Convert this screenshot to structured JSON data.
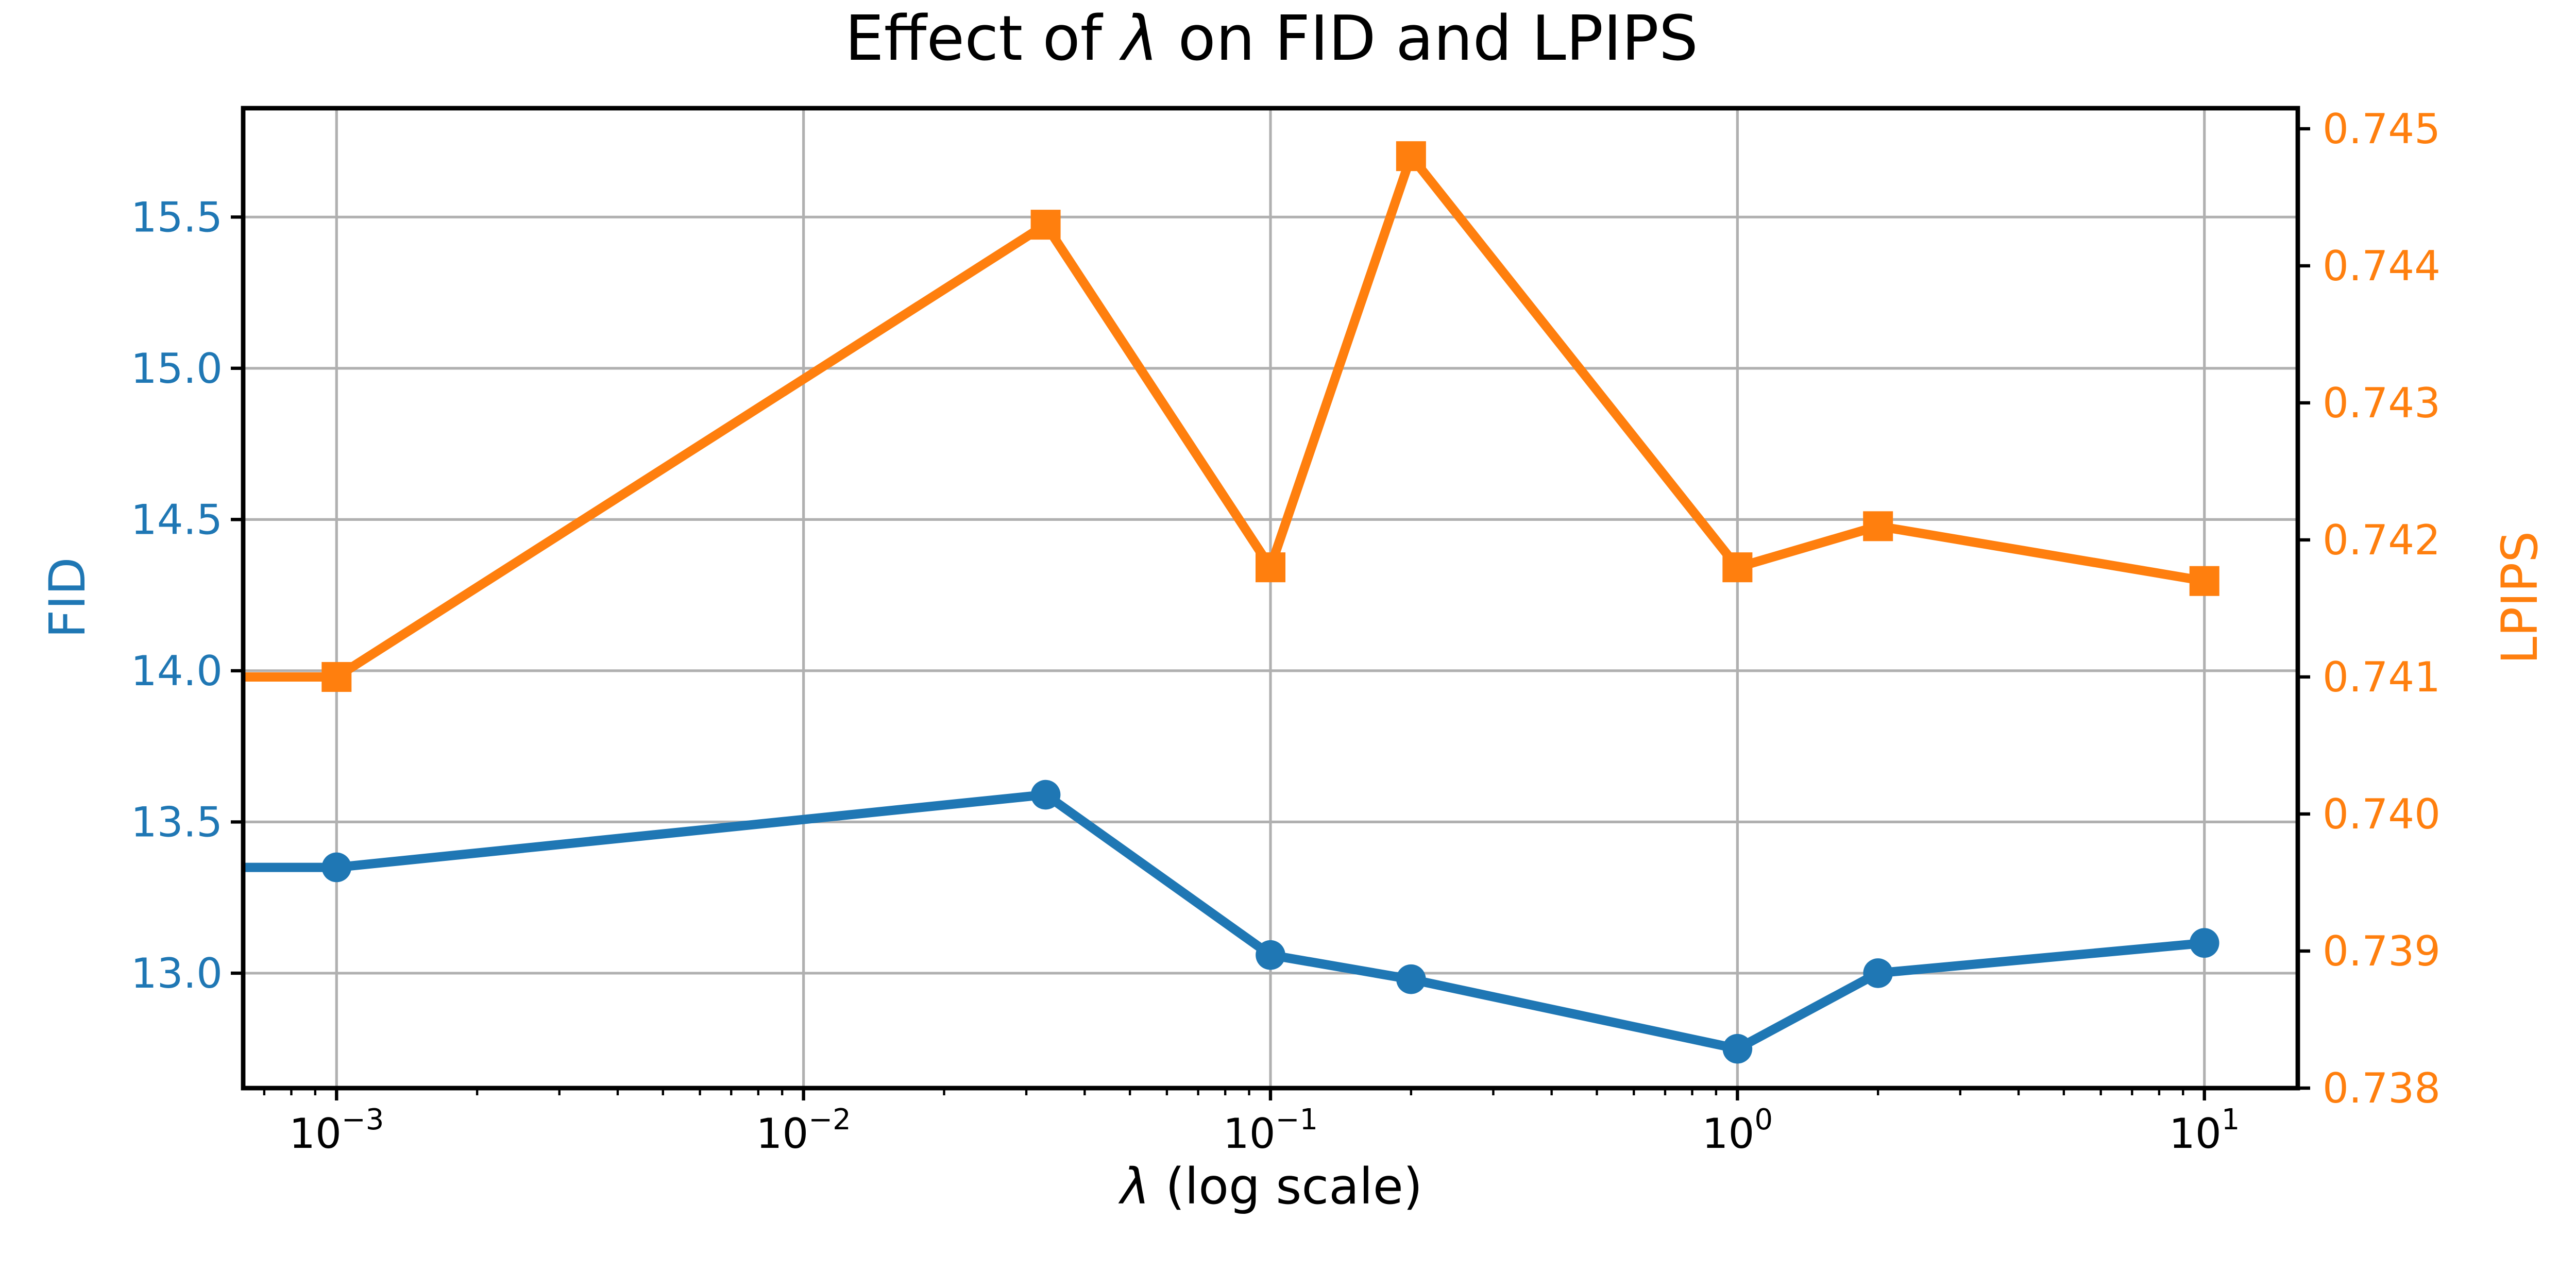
{
  "chart_data": {
    "type": "line",
    "title": "Effect of λ on FID and LPIPS",
    "title_parts": {
      "prefix": "Effect of ",
      "lambda": "λ",
      "suffix": " on FID and LPIPS"
    },
    "xlabel": "λ (log scale)",
    "xlabel_parts": {
      "lambda": "λ",
      "rest": " (log scale)"
    },
    "x_scale": "log",
    "xlim_log10": [
      -3.2,
      1.2
    ],
    "x_major_tick_exponents": [
      -3,
      -2,
      -1,
      0,
      1
    ],
    "x": [
      0.001,
      0.033,
      0.1,
      0.2,
      1,
      2,
      10
    ],
    "series": [
      {
        "name": "FID",
        "axis": "left",
        "color": "#1f77b4",
        "marker": "circle",
        "values": [
          13.35,
          13.59,
          13.06,
          12.98,
          12.75,
          13.0,
          13.1
        ]
      },
      {
        "name": "LPIPS",
        "axis": "right",
        "color": "#ff7f0e",
        "marker": "square",
        "values": [
          0.741,
          0.7443,
          0.7418,
          0.7448,
          0.7418,
          0.7421,
          0.7417
        ]
      }
    ],
    "left_axis": {
      "label": "FID",
      "color": "#1f77b4",
      "ticks": [
        13.0,
        13.5,
        14.0,
        14.5,
        15.0,
        15.5
      ],
      "ylim": [
        12.62,
        15.86
      ],
      "tick_decimals": 1
    },
    "right_axis": {
      "label": "LPIPS",
      "color": "#ff7f0e",
      "ticks": [
        0.738,
        0.739,
        0.74,
        0.741,
        0.742,
        0.743,
        0.744,
        0.745
      ],
      "ylim": [
        0.738,
        0.74515
      ],
      "tick_decimals": 3
    },
    "grid": {
      "show": true,
      "color": "#b0b0b0"
    },
    "spine_color": "#000000",
    "tick_color": "#000000",
    "background": "#ffffff",
    "lines_extend_to_left_edge": true
  }
}
